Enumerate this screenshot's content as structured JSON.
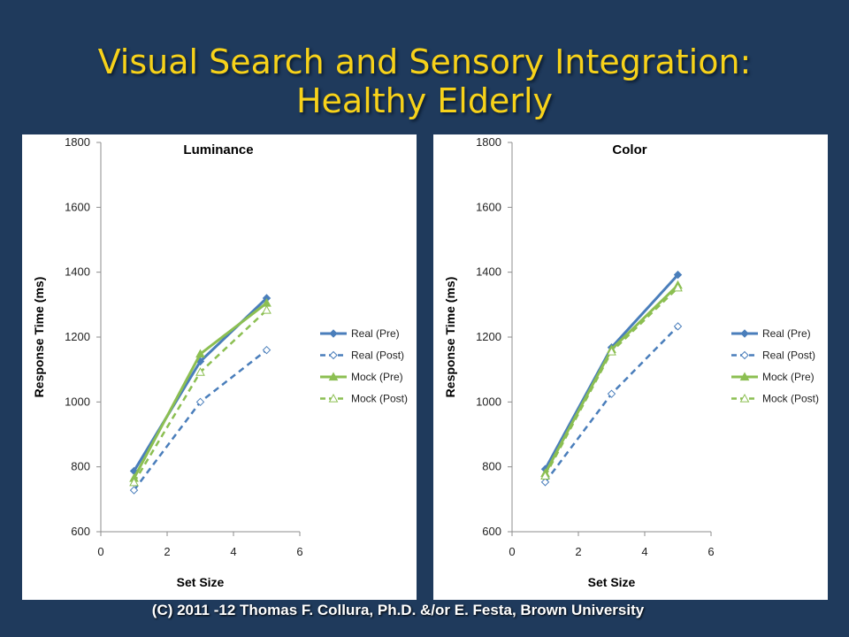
{
  "title": {
    "line1": "Visual Search and Sensory Integration:",
    "line2": "Healthy Elderly"
  },
  "footer": "(C) 2011 -12 Thomas F. Collura, Ph.D. &/or E. Festa, Brown University",
  "colors": {
    "background": "#1f3a5c",
    "title": "#f7d21a",
    "real": "#4a7ebb",
    "mock": "#8cbf52"
  },
  "chart_data": [
    {
      "type": "line",
      "title": "Luminance",
      "xlabel": "Set Size",
      "ylabel": "Response Time (ms)",
      "xlim": [
        0,
        6
      ],
      "ylim": [
        600,
        1800
      ],
      "xticks": [
        0,
        2,
        4,
        6
      ],
      "yticks": [
        600,
        800,
        1000,
        1200,
        1400,
        1600,
        1800
      ],
      "grid": false,
      "legend": "right",
      "x": [
        1,
        3,
        5
      ],
      "series": [
        {
          "name": "Real (Pre)",
          "values": [
            787,
            1125,
            1320
          ],
          "color": "#4a7ebb",
          "dash": false,
          "marker": "diamond-filled"
        },
        {
          "name": "Real (Post)",
          "values": [
            728,
            1000,
            1160
          ],
          "color": "#4a7ebb",
          "dash": true,
          "marker": "diamond-open"
        },
        {
          "name": "Mock (Pre)",
          "values": [
            765,
            1148,
            1305
          ],
          "color": "#8cbf52",
          "dash": false,
          "marker": "triangle-filled"
        },
        {
          "name": "Mock (Post)",
          "values": [
            752,
            1092,
            1283
          ],
          "color": "#8cbf52",
          "dash": true,
          "marker": "triangle-open"
        }
      ]
    },
    {
      "type": "line",
      "title": "Color",
      "xlabel": "Set Size",
      "ylabel": "Response Time (ms)",
      "xlim": [
        0,
        6
      ],
      "ylim": [
        600,
        1800
      ],
      "xticks": [
        0,
        2,
        4,
        6
      ],
      "yticks": [
        600,
        800,
        1000,
        1200,
        1400,
        1600,
        1800
      ],
      "grid": false,
      "legend": "right",
      "x": [
        1,
        3,
        5
      ],
      "series": [
        {
          "name": "Real (Pre)",
          "values": [
            793,
            1168,
            1392
          ],
          "color": "#4a7ebb",
          "dash": false,
          "marker": "diamond-filled"
        },
        {
          "name": "Real (Post)",
          "values": [
            753,
            1025,
            1233
          ],
          "color": "#4a7ebb",
          "dash": true,
          "marker": "diamond-open"
        },
        {
          "name": "Mock (Pre)",
          "values": [
            780,
            1162,
            1360
          ],
          "color": "#8cbf52",
          "dash": false,
          "marker": "triangle-filled"
        },
        {
          "name": "Mock (Post)",
          "values": [
            772,
            1155,
            1352
          ],
          "color": "#8cbf52",
          "dash": true,
          "marker": "triangle-open"
        }
      ]
    }
  ]
}
